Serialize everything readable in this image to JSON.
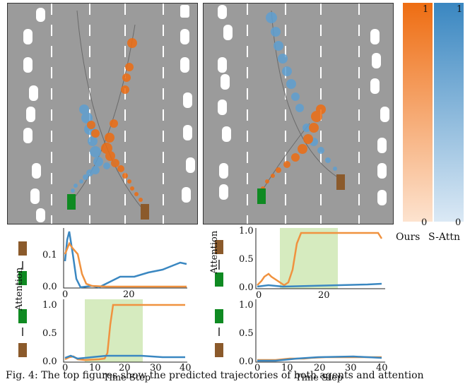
{
  "colors": {
    "ours": "#ee6d12",
    "s_attn": "#3a87c1",
    "road": "#9b9b9b",
    "shade": "#cfe8b4",
    "agent_green": "#0f8a22",
    "agent_brown": "#8b5a2b"
  },
  "colorbars": {
    "ours": {
      "label": "Ours",
      "top": "1",
      "bottom": "0"
    },
    "s_attn": {
      "label": "S-Attn",
      "top": "1",
      "bottom": "0"
    }
  },
  "plots": {
    "ylabel": "Attention",
    "xlabel": "Time Step",
    "top_left": {
      "yticks": [
        "0.0",
        "0.1"
      ],
      "xticks": [
        "0",
        "20"
      ]
    },
    "top_right": {
      "yticks": [
        "0.0",
        "0.5",
        "1.0"
      ],
      "xticks": [
        "0",
        "20"
      ]
    },
    "bottom_left": {
      "yticks": [
        "0.0",
        "0.5",
        "1.0"
      ],
      "xticks": [
        "0",
        "10",
        "20",
        "30",
        "40"
      ]
    },
    "bottom_right": {
      "yticks": [
        "0.0",
        "0.5",
        "1.0"
      ],
      "xticks": [
        "0",
        "10",
        "20",
        "30",
        "40"
      ]
    }
  },
  "caption": "Fig. 4: The top figures show the predicted trajectories of both agents and attention"
}
